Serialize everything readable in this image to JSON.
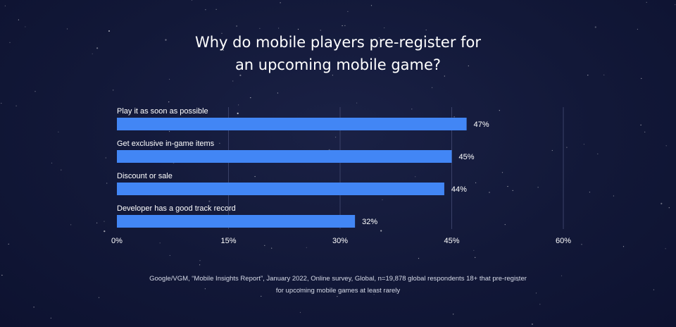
{
  "colors": {
    "bar": "#4286f5",
    "background": "#121838",
    "grid": "#3a4168",
    "text": "#ffffff"
  },
  "title_line1": "Why do mobile players pre-register for",
  "title_line2": "an upcoming mobile game?",
  "source_text": "Google/VGM, “Mobile Insights Report”, January 2022, Online survey, Global, n=19,878 global respondents 18+ that pre-register for upcoming mobile games at least rarely",
  "chart_data": {
    "type": "bar",
    "orientation": "horizontal",
    "title": "Why do mobile players pre-register for an upcoming mobile game?",
    "categories": [
      "Play it as soon as possible",
      "Get exclusive in-game items",
      "Discount or sale",
      "Developer has a good track record"
    ],
    "values": [
      47,
      45,
      44,
      32
    ],
    "value_labels": [
      "47%",
      "45%",
      "44%",
      "32%"
    ],
    "xlim": [
      0,
      60
    ],
    "xticks": [
      0,
      15,
      30,
      45,
      60
    ],
    "xtick_labels": [
      "0%",
      "15%",
      "30%",
      "45%",
      "60%"
    ],
    "grid": true,
    "legend": "none"
  }
}
